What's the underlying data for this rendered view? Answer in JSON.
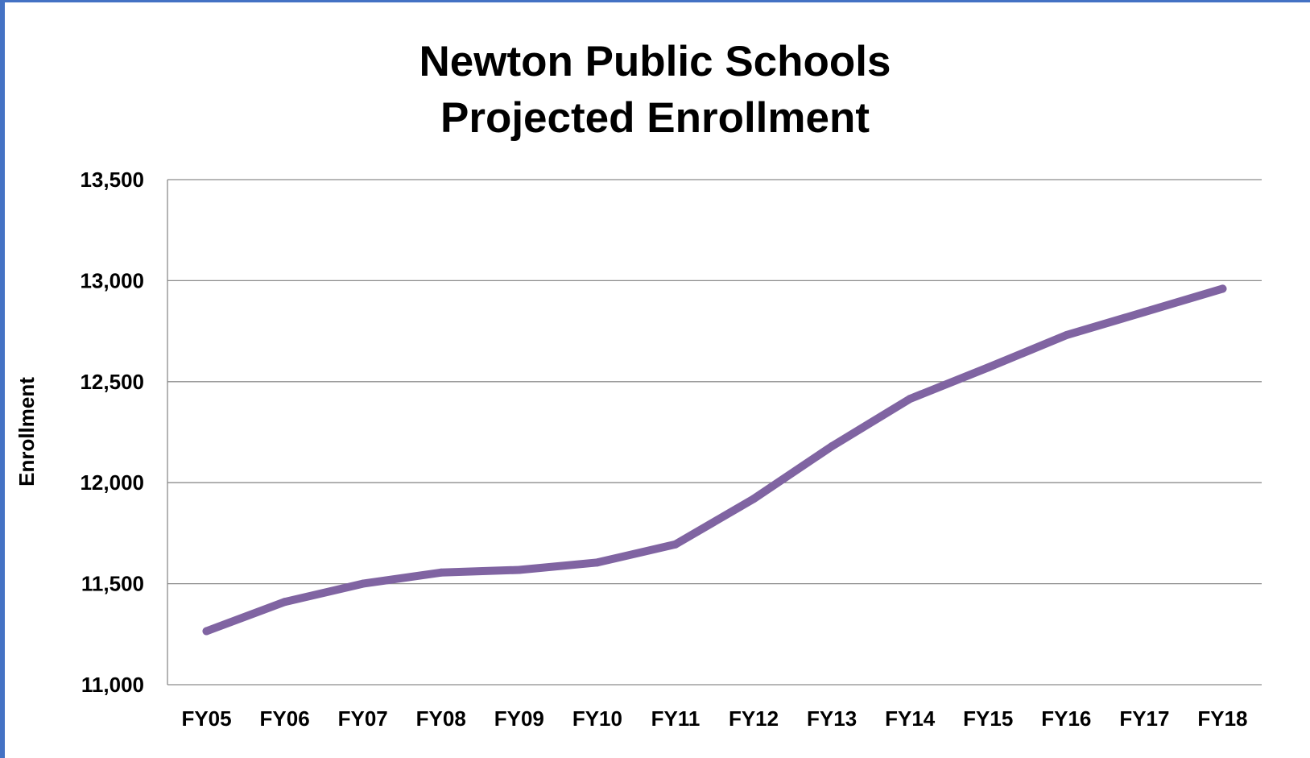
{
  "chart_data": {
    "type": "line",
    "title_lines": [
      "Newton Public Schools",
      "Projected Enrollment"
    ],
    "xlabel": "",
    "ylabel": "Enrollment",
    "ylim": [
      11000,
      13500
    ],
    "yticks": [
      11000,
      11500,
      12000,
      12500,
      13000,
      13500
    ],
    "ytick_labels": [
      "11,000",
      "11,500",
      "12,000",
      "12,500",
      "13,000",
      "13,500"
    ],
    "categories": [
      "FY05",
      "FY06",
      "FY07",
      "FY08",
      "FY09",
      "FY10",
      "FY11",
      "FY12",
      "FY13",
      "FY14",
      "FY15",
      "FY16",
      "FY17",
      "FY18"
    ],
    "grid": true,
    "legend": "none",
    "series": [
      {
        "color": "#8064a2",
        "values": [
          11265,
          11410,
          11500,
          11555,
          11568,
          11605,
          11695,
          11920,
          12180,
          12415,
          12570,
          12730,
          12845,
          12960
        ]
      }
    ]
  }
}
